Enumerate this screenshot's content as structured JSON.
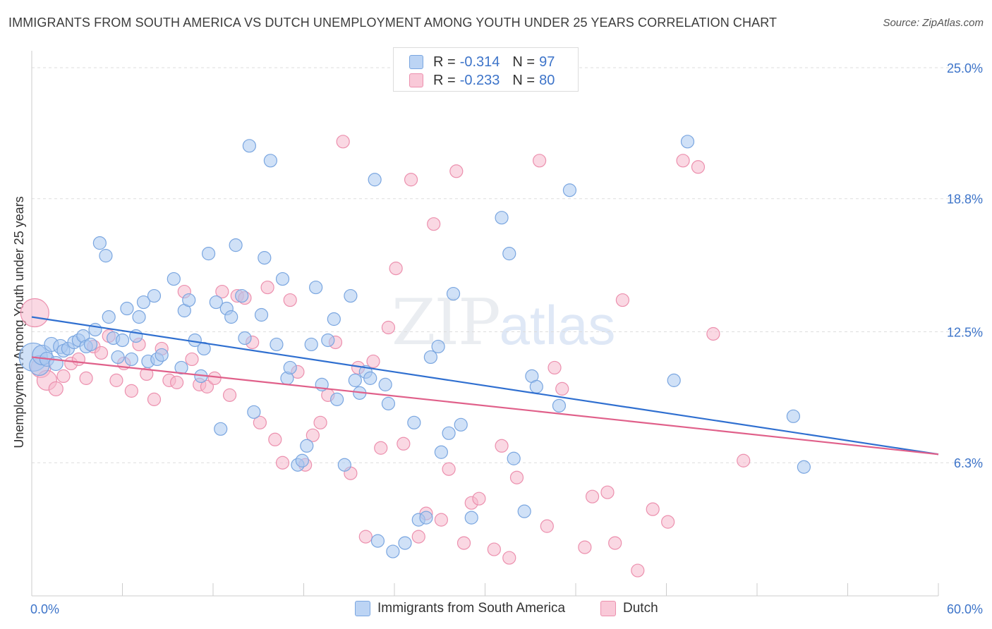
{
  "title": "IMMIGRANTS FROM SOUTH AMERICA VS DUTCH UNEMPLOYMENT AMONG YOUTH UNDER 25 YEARS CORRELATION CHART",
  "source": "Source: ZipAtlas.com",
  "watermark": {
    "zip": "ZIP",
    "atlas": "atlas"
  },
  "legend_top": [
    {
      "r_label": "R =",
      "r_value": "-0.314",
      "n_label": "N =",
      "n_value": "97"
    },
    {
      "r_label": "R =",
      "r_value": "-0.233",
      "n_label": "N =",
      "n_value": "80"
    }
  ],
  "colors": {
    "blue_fill": "#a9c8f0",
    "blue_stroke": "#7aa6e0",
    "blue_line": "#2f6fd0",
    "pink_fill": "#f6b8cc",
    "pink_stroke": "#ec90ae",
    "pink_line": "#e0608a",
    "tick_label": "#3d74c9",
    "grid": "#dddddd"
  },
  "chart_data": {
    "type": "scatter",
    "title": "IMMIGRANTS FROM SOUTH AMERICA VS DUTCH UNEMPLOYMENT AMONG YOUTH UNDER 25 YEARS CORRELATION CHART",
    "xlabel": "",
    "ylabel": "Unemployment Among Youth under 25 years",
    "xlim": [
      0,
      60
    ],
    "ylim": [
      0,
      25.8
    ],
    "x_tick_labels": [
      "0.0%",
      "60.0%"
    ],
    "y_ticks": [
      6.3,
      12.5,
      18.8,
      25.0
    ],
    "y_tick_labels": [
      "6.3%",
      "12.5%",
      "18.8%",
      "25.0%"
    ],
    "grid": true,
    "legend_position": "bottom",
    "series": [
      {
        "name": "Immigrants from South America",
        "r": -0.314,
        "n": 97,
        "trend": {
          "x": [
            0,
            60
          ],
          "y": [
            13.2,
            6.7
          ]
        },
        "points": [
          [
            0.1,
            11.3
          ],
          [
            0.5,
            10.9
          ],
          [
            0.7,
            11.4
          ],
          [
            1.0,
            11.2
          ],
          [
            1.3,
            11.9
          ],
          [
            1.6,
            11.0
          ],
          [
            1.9,
            11.8
          ],
          [
            2.1,
            11.6
          ],
          [
            2.4,
            11.7
          ],
          [
            2.8,
            12.0
          ],
          [
            3.1,
            12.1
          ],
          [
            3.4,
            12.3
          ],
          [
            3.6,
            11.8
          ],
          [
            3.9,
            11.9
          ],
          [
            4.2,
            12.6
          ],
          [
            4.5,
            16.7
          ],
          [
            4.9,
            16.1
          ],
          [
            5.1,
            13.2
          ],
          [
            5.4,
            12.2
          ],
          [
            5.7,
            11.3
          ],
          [
            6.0,
            12.1
          ],
          [
            6.3,
            13.6
          ],
          [
            6.6,
            11.2
          ],
          [
            6.9,
            12.3
          ],
          [
            7.1,
            13.2
          ],
          [
            7.4,
            13.9
          ],
          [
            7.7,
            11.1
          ],
          [
            8.1,
            14.2
          ],
          [
            8.3,
            11.2
          ],
          [
            8.6,
            11.4
          ],
          [
            9.4,
            15.0
          ],
          [
            9.9,
            10.8
          ],
          [
            10.1,
            13.5
          ],
          [
            10.4,
            14.0
          ],
          [
            10.8,
            12.1
          ],
          [
            11.2,
            10.4
          ],
          [
            11.4,
            11.7
          ],
          [
            11.7,
            16.2
          ],
          [
            12.2,
            13.9
          ],
          [
            12.5,
            7.9
          ],
          [
            12.9,
            13.6
          ],
          [
            13.2,
            13.2
          ],
          [
            13.5,
            16.6
          ],
          [
            13.9,
            14.2
          ],
          [
            14.1,
            12.2
          ],
          [
            14.4,
            21.3
          ],
          [
            14.7,
            8.7
          ],
          [
            15.2,
            13.3
          ],
          [
            15.4,
            16.0
          ],
          [
            15.8,
            20.6
          ],
          [
            16.2,
            11.9
          ],
          [
            16.6,
            15.0
          ],
          [
            16.9,
            10.3
          ],
          [
            17.1,
            10.8
          ],
          [
            17.6,
            6.2
          ],
          [
            17.9,
            6.4
          ],
          [
            18.2,
            7.1
          ],
          [
            18.5,
            11.9
          ],
          [
            18.8,
            14.6
          ],
          [
            19.2,
            10.0
          ],
          [
            19.6,
            12.1
          ],
          [
            20.0,
            13.1
          ],
          [
            20.2,
            9.3
          ],
          [
            20.7,
            6.2
          ],
          [
            21.1,
            14.2
          ],
          [
            21.4,
            10.2
          ],
          [
            21.7,
            9.6
          ],
          [
            22.1,
            10.6
          ],
          [
            22.4,
            10.3
          ],
          [
            22.7,
            19.7
          ],
          [
            22.9,
            2.6
          ],
          [
            23.4,
            10.0
          ],
          [
            23.6,
            9.1
          ],
          [
            23.9,
            2.1
          ],
          [
            24.7,
            2.5
          ],
          [
            25.3,
            8.2
          ],
          [
            25.6,
            3.6
          ],
          [
            26.1,
            3.7
          ],
          [
            26.4,
            11.3
          ],
          [
            26.9,
            11.8
          ],
          [
            27.1,
            6.8
          ],
          [
            27.6,
            7.7
          ],
          [
            27.9,
            14.3
          ],
          [
            28.4,
            8.1
          ],
          [
            29.1,
            3.7
          ],
          [
            31.1,
            17.9
          ],
          [
            31.6,
            16.2
          ],
          [
            31.9,
            6.5
          ],
          [
            32.6,
            4.0
          ],
          [
            33.1,
            10.4
          ],
          [
            33.4,
            9.9
          ],
          [
            34.9,
            9.0
          ],
          [
            35.6,
            19.2
          ],
          [
            42.5,
            10.2
          ],
          [
            50.4,
            8.5
          ],
          [
            51.1,
            6.1
          ],
          [
            43.4,
            21.5
          ]
        ]
      },
      {
        "name": "Dutch",
        "r": -0.233,
        "n": 80,
        "trend": {
          "x": [
            0,
            60
          ],
          "y": [
            11.3,
            6.7
          ]
        },
        "points": [
          [
            0.2,
            13.4
          ],
          [
            0.6,
            10.8
          ],
          [
            1.0,
            10.2
          ],
          [
            1.6,
            9.8
          ],
          [
            2.1,
            10.4
          ],
          [
            2.6,
            11.0
          ],
          [
            3.1,
            11.2
          ],
          [
            3.6,
            10.3
          ],
          [
            4.1,
            11.8
          ],
          [
            4.6,
            11.5
          ],
          [
            5.1,
            12.3
          ],
          [
            5.6,
            10.2
          ],
          [
            6.1,
            11.0
          ],
          [
            6.6,
            9.7
          ],
          [
            7.1,
            11.9
          ],
          [
            7.6,
            10.5
          ],
          [
            8.1,
            9.3
          ],
          [
            8.6,
            11.7
          ],
          [
            9.1,
            10.2
          ],
          [
            9.6,
            10.1
          ],
          [
            10.1,
            14.4
          ],
          [
            10.6,
            11.2
          ],
          [
            11.1,
            10.0
          ],
          [
            11.6,
            9.9
          ],
          [
            12.1,
            10.3
          ],
          [
            12.6,
            14.4
          ],
          [
            13.1,
            9.5
          ],
          [
            13.6,
            14.2
          ],
          [
            14.1,
            14.1
          ],
          [
            14.6,
            12.0
          ],
          [
            15.1,
            8.2
          ],
          [
            15.6,
            14.6
          ],
          [
            16.1,
            7.4
          ],
          [
            16.6,
            6.3
          ],
          [
            17.1,
            14.0
          ],
          [
            17.6,
            10.6
          ],
          [
            18.1,
            6.2
          ],
          [
            18.6,
            7.6
          ],
          [
            19.1,
            8.2
          ],
          [
            19.6,
            9.5
          ],
          [
            20.1,
            12.0
          ],
          [
            20.6,
            21.5
          ],
          [
            21.1,
            5.8
          ],
          [
            21.6,
            10.8
          ],
          [
            22.1,
            2.8
          ],
          [
            22.6,
            11.1
          ],
          [
            23.1,
            7.0
          ],
          [
            23.6,
            12.7
          ],
          [
            24.1,
            15.5
          ],
          [
            24.6,
            7.2
          ],
          [
            25.1,
            19.7
          ],
          [
            25.6,
            2.8
          ],
          [
            26.1,
            3.9
          ],
          [
            26.6,
            17.6
          ],
          [
            27.1,
            3.6
          ],
          [
            27.6,
            6.0
          ],
          [
            28.1,
            20.1
          ],
          [
            28.6,
            2.5
          ],
          [
            29.1,
            4.4
          ],
          [
            29.6,
            4.6
          ],
          [
            30.6,
            2.2
          ],
          [
            31.1,
            7.1
          ],
          [
            31.6,
            1.8
          ],
          [
            32.1,
            5.6
          ],
          [
            33.6,
            20.6
          ],
          [
            34.1,
            3.3
          ],
          [
            34.6,
            10.8
          ],
          [
            35.1,
            9.8
          ],
          [
            36.6,
            2.3
          ],
          [
            37.1,
            4.7
          ],
          [
            38.1,
            4.9
          ],
          [
            38.6,
            2.5
          ],
          [
            39.1,
            14.0
          ],
          [
            40.1,
            1.2
          ],
          [
            41.1,
            4.1
          ],
          [
            42.1,
            3.5
          ],
          [
            43.1,
            20.6
          ],
          [
            44.1,
            20.3
          ],
          [
            45.1,
            12.4
          ],
          [
            47.1,
            6.4
          ]
        ]
      }
    ]
  }
}
